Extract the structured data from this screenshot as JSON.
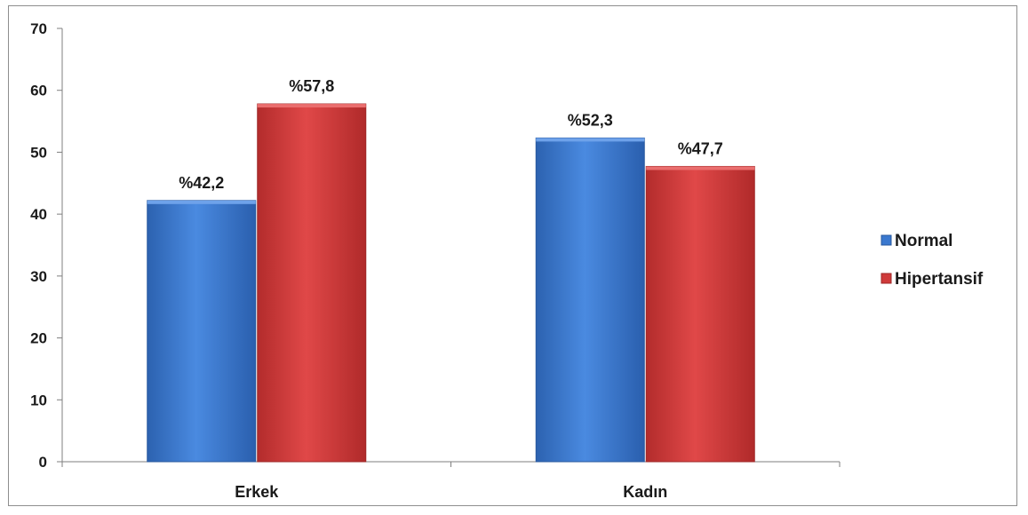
{
  "chart_data": {
    "type": "bar",
    "categories": [
      "Erkek",
      "Kadın"
    ],
    "series": [
      {
        "name": "Normal",
        "values": [
          42.2,
          52.3
        ],
        "labels": [
          "%42,2",
          "%52,3"
        ],
        "color": "#3a78cf"
      },
      {
        "name": "Hipertansif",
        "values": [
          57.8,
          47.7
        ],
        "labels": [
          "%57,8",
          "%47,7"
        ],
        "color": "#cf3a3a"
      }
    ],
    "ylim": [
      0,
      70
    ],
    "yticks": [
      0,
      10,
      20,
      30,
      40,
      50,
      60,
      70
    ],
    "grid": false,
    "legend": "right"
  }
}
